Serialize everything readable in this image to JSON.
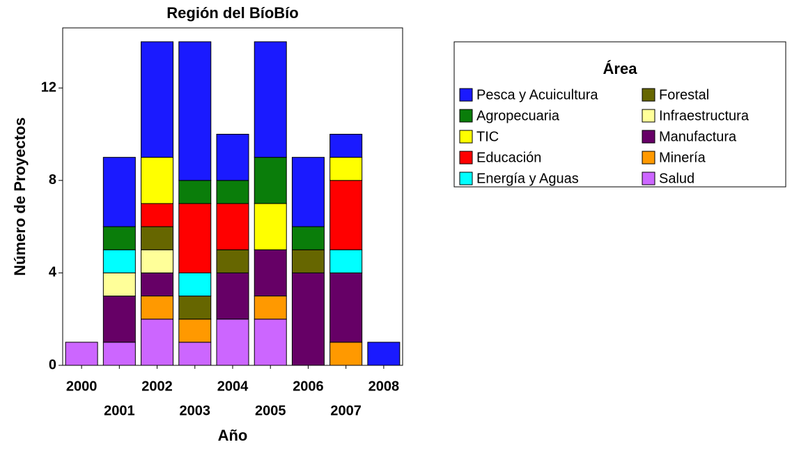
{
  "chart_data": {
    "type": "bar",
    "stacked": true,
    "title": "Región del BíoBío",
    "x_label": "Año",
    "y_label": "Número de Proyectos",
    "legend_title": "Área",
    "categories": [
      "2000",
      "2001",
      "2002",
      "2003",
      "2004",
      "2005",
      "2006",
      "2007",
      "2008"
    ],
    "series": [
      {
        "name": "Pesca y Acuicultura",
        "color": "#1a1aff",
        "values": [
          0,
          3,
          5,
          6,
          2,
          5,
          3,
          1,
          1
        ]
      },
      {
        "name": "Agropecuaria",
        "color": "#0a7d0a",
        "values": [
          0,
          1,
          0,
          1,
          1,
          2,
          1,
          0,
          0
        ]
      },
      {
        "name": "TIC",
        "color": "#ffff00",
        "values": [
          0,
          0,
          2,
          0,
          0,
          2,
          0,
          1,
          0
        ]
      },
      {
        "name": "Educación",
        "color": "#ff0000",
        "values": [
          0,
          0,
          1,
          3,
          2,
          0,
          0,
          3,
          0
        ]
      },
      {
        "name": "Energía y Aguas",
        "color": "#00ffff",
        "values": [
          0,
          1,
          0,
          1,
          0,
          0,
          0,
          1,
          0
        ]
      },
      {
        "name": "Forestal",
        "color": "#666600",
        "values": [
          0,
          0,
          1,
          1,
          1,
          0,
          1,
          0,
          0
        ]
      },
      {
        "name": "Infraestructura",
        "color": "#ffff99",
        "values": [
          0,
          1,
          1,
          0,
          0,
          0,
          0,
          0,
          0
        ]
      },
      {
        "name": "Manufactura",
        "color": "#660066",
        "values": [
          0,
          2,
          1,
          0,
          2,
          2,
          4,
          3,
          0
        ]
      },
      {
        "name": "Minería",
        "color": "#ff9900",
        "values": [
          0,
          0,
          1,
          1,
          0,
          1,
          0,
          1,
          0
        ]
      },
      {
        "name": "Salud",
        "color": "#cc66ff",
        "values": [
          1,
          1,
          2,
          1,
          2,
          2,
          0,
          0,
          0
        ]
      }
    ],
    "ylim": [
      0,
      14.6
    ],
    "yticks": [
      0,
      4,
      8,
      12
    ],
    "grid": false,
    "legend": "upper right"
  }
}
